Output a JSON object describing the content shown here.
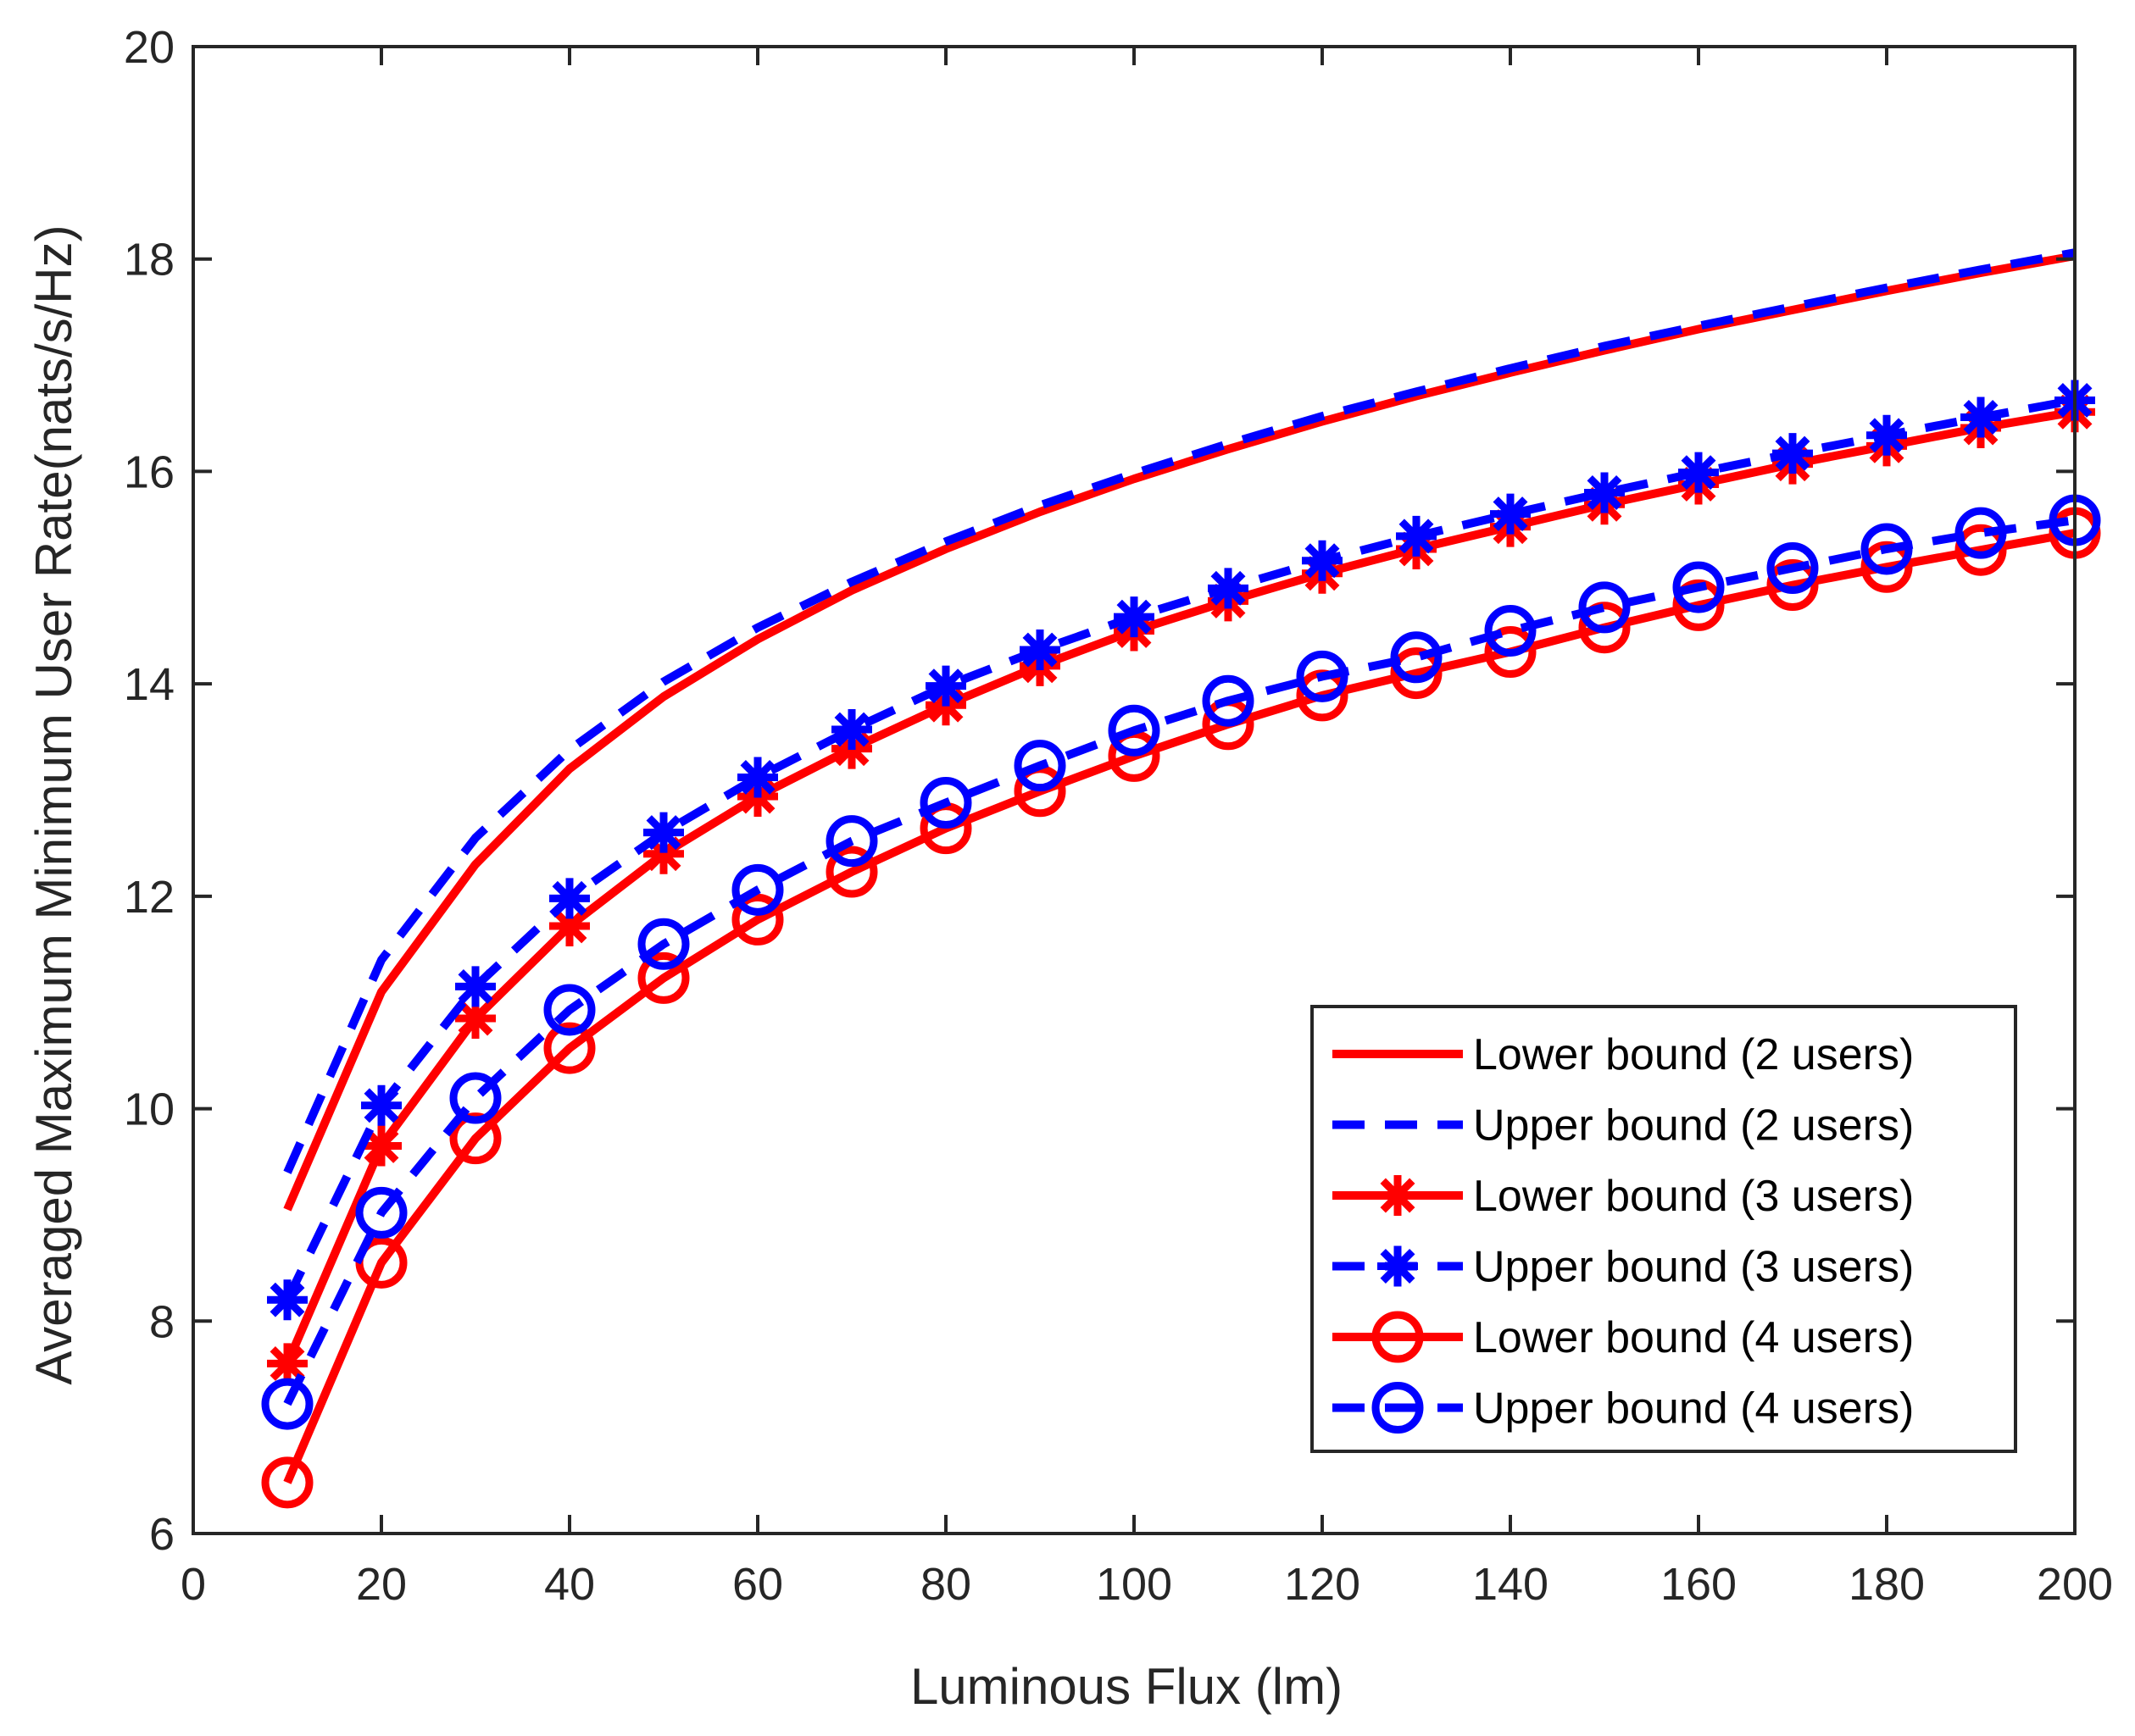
{
  "chart_data": {
    "type": "line",
    "title": "",
    "xlabel": "Luminous Flux (lm)",
    "ylabel": "Averaged Maximum Minimum User Rate(nats/s/Hz)",
    "xlim": [
      0,
      200
    ],
    "ylim": [
      6,
      20
    ],
    "xticks": [
      0,
      20,
      40,
      60,
      80,
      100,
      120,
      140,
      160,
      180,
      200
    ],
    "yticks": [
      6,
      8,
      10,
      12,
      14,
      16,
      18,
      20
    ],
    "grid": false,
    "legend_position": "bottom-right",
    "colors": {
      "red": "#ff0000",
      "blue": "#0000ff",
      "axis": "#262626"
    },
    "x": [
      10,
      20,
      30,
      40,
      50,
      60,
      70,
      80,
      90,
      100,
      110,
      120,
      130,
      140,
      150,
      160,
      170,
      180,
      190,
      200
    ],
    "series": [
      {
        "name": "Lower bound (2 users)",
        "color": "#ff0000",
        "line": "solid",
        "marker": "none",
        "values": [
          9.05,
          11.1,
          12.3,
          13.2,
          13.88,
          14.42,
          14.88,
          15.27,
          15.62,
          15.93,
          16.21,
          16.47,
          16.71,
          16.93,
          17.14,
          17.34,
          17.52,
          17.7,
          17.87,
          18.03
        ]
      },
      {
        "name": "Upper bound (2 users)",
        "color": "#0000ff",
        "line": "dashed",
        "marker": "none",
        "values": [
          9.4,
          11.4,
          12.55,
          13.38,
          14.02,
          14.53,
          14.96,
          15.34,
          15.68,
          15.98,
          16.26,
          16.52,
          16.75,
          16.97,
          17.18,
          17.37,
          17.55,
          17.73,
          17.9,
          18.06
        ]
      },
      {
        "name": "Lower bound (3 users)",
        "color": "#ff0000",
        "line": "solid",
        "marker": "asterisk",
        "values": [
          7.6,
          9.65,
          10.85,
          11.72,
          12.4,
          12.94,
          13.39,
          13.8,
          14.17,
          14.5,
          14.78,
          15.04,
          15.27,
          15.48,
          15.69,
          15.88,
          16.07,
          16.24,
          16.41,
          16.56
        ]
      },
      {
        "name": "Upper bound (3 users)",
        "color": "#0000ff",
        "line": "dashed",
        "marker": "asterisk",
        "values": [
          8.2,
          10.03,
          11.15,
          11.98,
          12.6,
          13.12,
          13.57,
          13.98,
          14.32,
          14.63,
          14.9,
          15.16,
          15.39,
          15.6,
          15.8,
          15.99,
          16.17,
          16.34,
          16.51,
          16.67
        ]
      },
      {
        "name": "Lower bound (4 users)",
        "color": "#ff0000",
        "line": "solid",
        "marker": "circle",
        "values": [
          6.48,
          8.55,
          9.72,
          10.57,
          11.23,
          11.78,
          12.23,
          12.64,
          12.99,
          13.32,
          13.62,
          13.89,
          14.1,
          14.3,
          14.53,
          14.74,
          14.93,
          15.1,
          15.26,
          15.42
        ]
      },
      {
        "name": "Upper bound (4 users)",
        "color": "#0000ff",
        "line": "dashed",
        "marker": "circle",
        "values": [
          7.22,
          9.02,
          10.1,
          10.93,
          11.55,
          12.06,
          12.52,
          12.88,
          13.23,
          13.56,
          13.84,
          14.07,
          14.25,
          14.5,
          14.72,
          14.91,
          15.09,
          15.27,
          15.42,
          15.54
        ]
      }
    ]
  }
}
